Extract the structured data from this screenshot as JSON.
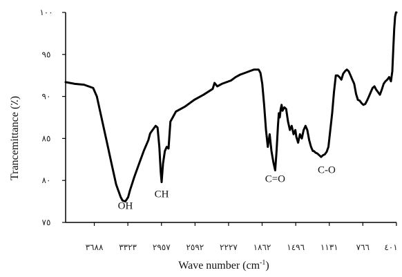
{
  "chart_data": {
    "type": "line",
    "title": "",
    "xlabel_main": "Wave number (cm",
    "xlabel_sup": "-1",
    "xlabel_end": ")",
    "ylabel": "Trancemittance (٪)",
    "x_reversed": true,
    "xlim": [
      4000,
      400
    ],
    "ylim": [
      75,
      100
    ],
    "grid": false,
    "x_ticks": [
      {
        "value": 3688,
        "label": "٣٦٨٨"
      },
      {
        "value": 3323,
        "label": "٣٣٢٣"
      },
      {
        "value": 2957,
        "label": "٢٩٥٧"
      },
      {
        "value": 2592,
        "label": "٢٥٩٢"
      },
      {
        "value": 2227,
        "label": "٢٢٢٧"
      },
      {
        "value": 1862,
        "label": "١٨٦٢"
      },
      {
        "value": 1496,
        "label": "١٤٩٦"
      },
      {
        "value": 1131,
        "label": "١١٣١"
      },
      {
        "value": 766,
        "label": "٧٦٦"
      },
      {
        "value": 401,
        "label": "٤٠١"
      }
    ],
    "y_ticks": [
      {
        "value": 75,
        "label": "٧٥"
      },
      {
        "value": 80,
        "label": "٨٠"
      },
      {
        "value": 85,
        "label": "٨٥"
      },
      {
        "value": 90,
        "label": "٩٠"
      },
      {
        "value": 95,
        "label": "٩٥"
      },
      {
        "value": 100,
        "label": "١٠٠"
      }
    ],
    "series": [
      {
        "color": "#000000",
        "x": [
          4000,
          3900,
          3800,
          3700,
          3660,
          3600,
          3550,
          3500,
          3450,
          3400,
          3380,
          3350,
          3320,
          3300,
          3250,
          3200,
          3150,
          3100,
          3080,
          3040,
          3020,
          3000,
          2980,
          2965,
          2955,
          2940,
          2920,
          2900,
          2880,
          2860,
          2800,
          2700,
          2600,
          2500,
          2400,
          2380,
          2350,
          2300,
          2200,
          2150,
          2100,
          2050,
          2000,
          1950,
          1900,
          1880,
          1860,
          1840,
          1820,
          1800,
          1780,
          1760,
          1740,
          1720,
          1705,
          1690,
          1680,
          1670,
          1660,
          1650,
          1640,
          1620,
          1600,
          1580,
          1560,
          1540,
          1520,
          1500,
          1490,
          1470,
          1450,
          1430,
          1410,
          1390,
          1370,
          1350,
          1330,
          1310,
          1300,
          1280,
          1260,
          1240,
          1220,
          1200,
          1180,
          1160,
          1140,
          1120,
          1100,
          1080,
          1060,
          1040,
          1020,
          1000,
          980,
          960,
          940,
          920,
          900,
          880,
          860,
          840,
          820,
          800,
          780,
          760,
          740,
          720,
          700,
          680,
          660,
          640,
          620,
          600,
          580,
          560,
          540,
          520,
          500,
          480,
          460,
          445,
          435,
          425,
          415,
          405,
          400
        ],
        "y": [
          91.7,
          91.5,
          91.4,
          91.0,
          90.0,
          87.0,
          84.5,
          82.0,
          79.5,
          78.0,
          77.6,
          77.5,
          78.0,
          78.8,
          80.5,
          82.0,
          83.5,
          84.8,
          85.6,
          86.2,
          86.5,
          86.3,
          84.0,
          81.0,
          79.8,
          82.0,
          83.5,
          84.0,
          83.8,
          87.0,
          88.2,
          88.8,
          89.6,
          90.2,
          90.9,
          91.6,
          91.2,
          91.5,
          91.9,
          92.3,
          92.6,
          92.8,
          93.0,
          93.2,
          93.2,
          92.8,
          91.5,
          89.0,
          86.0,
          84.0,
          85.5,
          83.5,
          82.2,
          81.2,
          83.5,
          86.5,
          88.0,
          87.5,
          88.5,
          89.0,
          88.3,
          88.7,
          88.5,
          87.0,
          86.0,
          86.5,
          85.5,
          86.0,
          85.2,
          84.5,
          85.5,
          85.0,
          86.0,
          86.5,
          86.0,
          84.8,
          84.0,
          83.5,
          83.5,
          83.3,
          83.2,
          83.0,
          82.8,
          83.0,
          83.1,
          83.4,
          84.0,
          86.0,
          88.0,
          90.5,
          92.5,
          92.5,
          92.3,
          92.0,
          92.7,
          93.0,
          93.2,
          93.0,
          92.5,
          92.0,
          91.5,
          90.3,
          89.6,
          89.5,
          89.2,
          89.0,
          89.1,
          89.5,
          90.0,
          90.5,
          91.0,
          91.2,
          90.8,
          90.5,
          90.2,
          90.8,
          91.5,
          91.8,
          92.0,
          92.3,
          91.8,
          93.0,
          95.5,
          98.0,
          99.5,
          100.0,
          100.0
        ]
      }
    ],
    "annotations": [
      {
        "text": "OH",
        "x": 3350,
        "y": 76.6
      },
      {
        "text": "CH",
        "x": 2955,
        "y": 78.0
      },
      {
        "text": "C=O",
        "x": 1720,
        "y": 79.8
      },
      {
        "text": "C-O",
        "x": 1160,
        "y": 80.9
      }
    ]
  }
}
